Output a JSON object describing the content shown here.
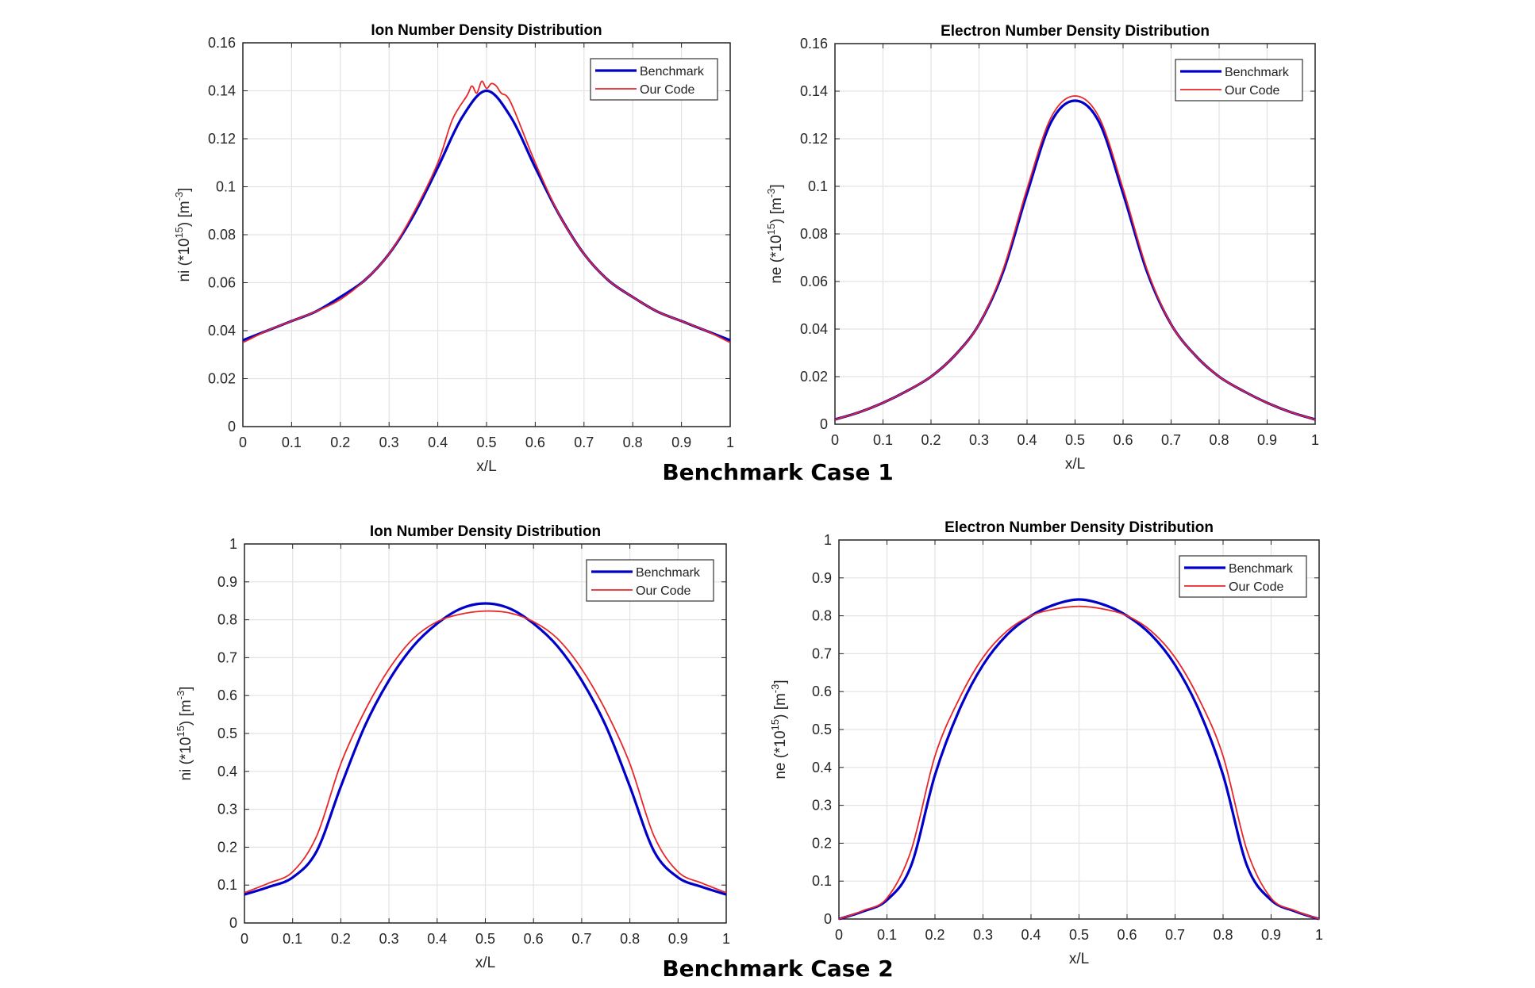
{
  "captions": [
    "Benchmark Case 1",
    "Benchmark Case 2"
  ],
  "colors": {
    "benchmark": "#0000c8",
    "our_code": "#e8262a",
    "grid": "#e3e3e3",
    "axis": "#262626"
  },
  "chart_data": [
    {
      "type": "line",
      "title": "Ion Number Density Distribution",
      "xlabel": "x/L",
      "ylabel_parts": [
        "ni (*10",
        "15",
        ") [m",
        "-3",
        "]"
      ],
      "xlim": [
        0,
        1
      ],
      "ylim": [
        0,
        0.16
      ],
      "xticks": [
        "0",
        "0.1",
        "0.2",
        "0.3",
        "0.4",
        "0.5",
        "0.6",
        "0.7",
        "0.8",
        "0.9",
        "1"
      ],
      "yticks": [
        "0",
        "0.02",
        "0.04",
        "0.06",
        "0.08",
        "0.1",
        "0.12",
        "0.14",
        "0.16"
      ],
      "grid": true,
      "legend": "top-right",
      "series": [
        {
          "name": "Benchmark",
          "x": [
            0,
            0.05,
            0.1,
            0.15,
            0.2,
            0.25,
            0.3,
            0.35,
            0.4,
            0.45,
            0.5,
            0.55,
            0.6,
            0.65,
            0.7,
            0.75,
            0.8,
            0.85,
            0.9,
            0.95,
            1
          ],
          "y": [
            0.036,
            0.04,
            0.044,
            0.048,
            0.054,
            0.061,
            0.072,
            0.088,
            0.108,
            0.129,
            0.14,
            0.129,
            0.108,
            0.088,
            0.072,
            0.061,
            0.054,
            0.048,
            0.044,
            0.04,
            0.036
          ]
        },
        {
          "name": "Our Code",
          "x": [
            0,
            0.05,
            0.1,
            0.15,
            0.2,
            0.25,
            0.3,
            0.35,
            0.4,
            0.43,
            0.46,
            0.47,
            0.48,
            0.49,
            0.5,
            0.51,
            0.52,
            0.53,
            0.55,
            0.6,
            0.65,
            0.7,
            0.75,
            0.8,
            0.85,
            0.9,
            0.95,
            1
          ],
          "y": [
            0.035,
            0.04,
            0.044,
            0.048,
            0.053,
            0.061,
            0.072,
            0.089,
            0.11,
            0.128,
            0.138,
            0.142,
            0.139,
            0.144,
            0.141,
            0.143,
            0.142,
            0.139,
            0.135,
            0.11,
            0.088,
            0.072,
            0.061,
            0.054,
            0.048,
            0.044,
            0.04,
            0.035
          ]
        }
      ]
    },
    {
      "type": "line",
      "title": "Electron Number Density Distribution",
      "xlabel": "x/L",
      "ylabel_parts": [
        "ne (*10",
        "15",
        ") [m",
        "-3",
        "]"
      ],
      "xlim": [
        0,
        1
      ],
      "ylim": [
        0,
        0.16
      ],
      "xticks": [
        "0",
        "0.1",
        "0.2",
        "0.3",
        "0.4",
        "0.5",
        "0.6",
        "0.7",
        "0.8",
        "0.9",
        "1"
      ],
      "yticks": [
        "0",
        "0.02",
        "0.04",
        "0.06",
        "0.08",
        "0.1",
        "0.12",
        "0.14",
        "0.16"
      ],
      "grid": true,
      "legend": "top-right",
      "series": [
        {
          "name": "Benchmark",
          "x": [
            0,
            0.05,
            0.1,
            0.15,
            0.2,
            0.25,
            0.3,
            0.35,
            0.4,
            0.45,
            0.5,
            0.55,
            0.6,
            0.65,
            0.7,
            0.75,
            0.8,
            0.85,
            0.9,
            0.95,
            1
          ],
          "y": [
            0.002,
            0.005,
            0.009,
            0.014,
            0.02,
            0.029,
            0.042,
            0.064,
            0.097,
            0.127,
            0.136,
            0.127,
            0.097,
            0.064,
            0.042,
            0.029,
            0.02,
            0.014,
            0.009,
            0.005,
            0.002
          ]
        },
        {
          "name": "Our Code",
          "x": [
            0,
            0.05,
            0.1,
            0.15,
            0.2,
            0.25,
            0.3,
            0.35,
            0.4,
            0.45,
            0.5,
            0.55,
            0.6,
            0.65,
            0.7,
            0.75,
            0.8,
            0.85,
            0.9,
            0.95,
            1
          ],
          "y": [
            0.002,
            0.005,
            0.009,
            0.014,
            0.02,
            0.029,
            0.042,
            0.065,
            0.099,
            0.129,
            0.138,
            0.129,
            0.099,
            0.065,
            0.042,
            0.029,
            0.02,
            0.014,
            0.009,
            0.005,
            0.002
          ]
        }
      ]
    },
    {
      "type": "line",
      "title": "Ion Number Density Distribution",
      "xlabel": "x/L",
      "ylabel_parts": [
        "ni (*10",
        "15",
        ") [m",
        "-3",
        "]"
      ],
      "xlim": [
        0,
        1
      ],
      "ylim": [
        0,
        1
      ],
      "xticks": [
        "0",
        "0.1",
        "0.2",
        "0.3",
        "0.4",
        "0.5",
        "0.6",
        "0.7",
        "0.8",
        "0.9",
        "1"
      ],
      "yticks": [
        "0",
        "0.1",
        "0.2",
        "0.3",
        "0.4",
        "0.5",
        "0.6",
        "0.7",
        "0.8",
        "0.9",
        "1"
      ],
      "grid": true,
      "legend": "top-right",
      "series": [
        {
          "name": "Benchmark",
          "x": [
            0,
            0.05,
            0.1,
            0.15,
            0.2,
            0.25,
            0.3,
            0.35,
            0.4,
            0.45,
            0.5,
            0.55,
            0.6,
            0.65,
            0.7,
            0.75,
            0.8,
            0.85,
            0.9,
            0.95,
            1
          ],
          "y": [
            0.075,
            0.095,
            0.12,
            0.19,
            0.36,
            0.52,
            0.64,
            0.73,
            0.79,
            0.83,
            0.843,
            0.83,
            0.79,
            0.73,
            0.64,
            0.52,
            0.36,
            0.19,
            0.12,
            0.095,
            0.075
          ]
        },
        {
          "name": "Our Code",
          "x": [
            0,
            0.05,
            0.1,
            0.15,
            0.2,
            0.25,
            0.3,
            0.35,
            0.4,
            0.45,
            0.5,
            0.55,
            0.6,
            0.65,
            0.7,
            0.75,
            0.8,
            0.85,
            0.9,
            0.95,
            1
          ],
          "y": [
            0.08,
            0.105,
            0.135,
            0.23,
            0.42,
            0.56,
            0.67,
            0.75,
            0.795,
            0.815,
            0.823,
            0.818,
            0.795,
            0.75,
            0.67,
            0.56,
            0.42,
            0.23,
            0.135,
            0.105,
            0.08
          ]
        }
      ]
    },
    {
      "type": "line",
      "title": "Electron Number Density Distribution",
      "xlabel": "x/L",
      "ylabel_parts": [
        "ne (*10",
        "15",
        ") [m",
        "-3",
        "]"
      ],
      "xlim": [
        0,
        1
      ],
      "ylim": [
        0,
        1
      ],
      "xticks": [
        "0",
        "0.1",
        "0.2",
        "0.3",
        "0.4",
        "0.5",
        "0.6",
        "0.7",
        "0.8",
        "0.9",
        "1"
      ],
      "yticks": [
        "0",
        "0.1",
        "0.2",
        "0.3",
        "0.4",
        "0.5",
        "0.6",
        "0.7",
        "0.8",
        "0.9",
        "1"
      ],
      "grid": true,
      "legend": "top-right",
      "series": [
        {
          "name": "Benchmark",
          "x": [
            0,
            0.05,
            0.1,
            0.15,
            0.2,
            0.25,
            0.3,
            0.35,
            0.4,
            0.45,
            0.5,
            0.55,
            0.6,
            0.65,
            0.7,
            0.75,
            0.8,
            0.85,
            0.9,
            0.95,
            1
          ],
          "y": [
            0.0,
            0.02,
            0.05,
            0.14,
            0.38,
            0.55,
            0.67,
            0.75,
            0.8,
            0.83,
            0.843,
            0.83,
            0.8,
            0.75,
            0.67,
            0.55,
            0.38,
            0.14,
            0.05,
            0.02,
            0.0
          ]
        },
        {
          "name": "Our Code",
          "x": [
            0,
            0.05,
            0.1,
            0.15,
            0.2,
            0.25,
            0.3,
            0.35,
            0.4,
            0.45,
            0.5,
            0.55,
            0.6,
            0.65,
            0.7,
            0.75,
            0.8,
            0.85,
            0.9,
            0.95,
            1
          ],
          "y": [
            0.0,
            0.022,
            0.055,
            0.18,
            0.43,
            0.58,
            0.69,
            0.76,
            0.8,
            0.818,
            0.825,
            0.818,
            0.8,
            0.76,
            0.69,
            0.58,
            0.43,
            0.18,
            0.055,
            0.022,
            0.0
          ]
        }
      ]
    }
  ]
}
